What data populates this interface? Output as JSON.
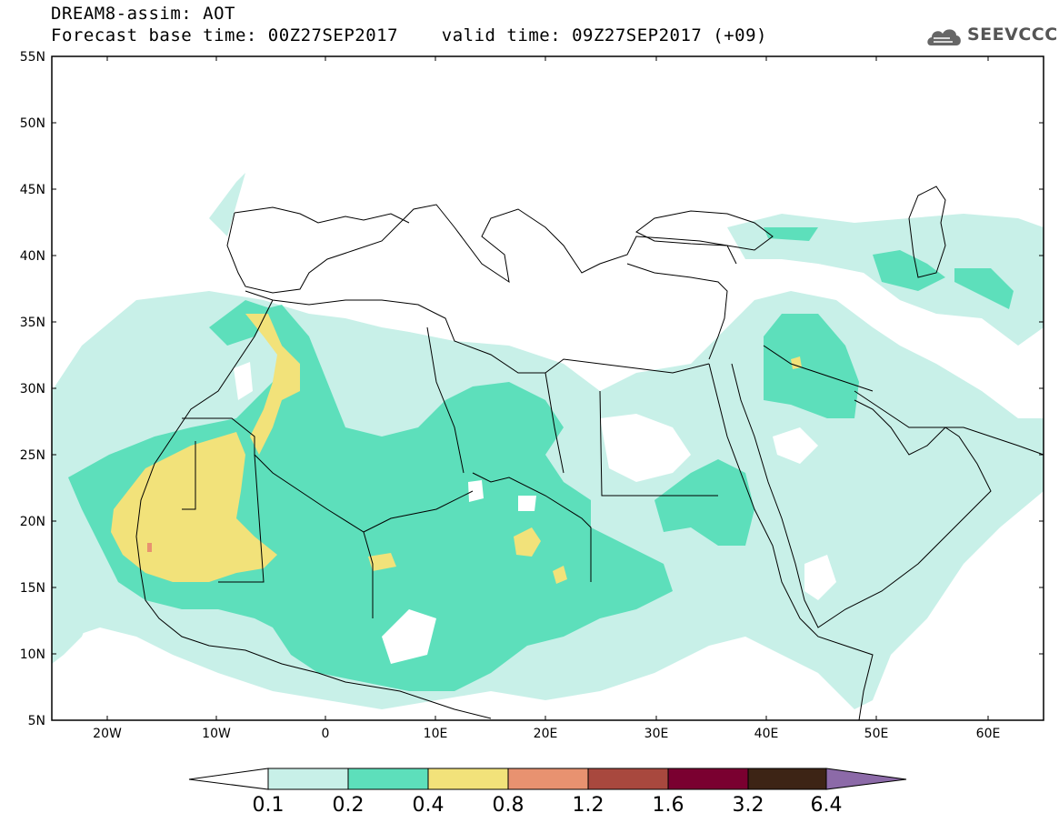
{
  "header": {
    "title_line1": "DREAM8-assim: AOT",
    "title_line2": "Forecast base time: 00Z27SEP2017    valid time: 09Z27SEP2017 (+09)",
    "logo_text": "SEEVCCC"
  },
  "map": {
    "lat_labels": [
      "55N",
      "50N",
      "45N",
      "40N",
      "35N",
      "30N",
      "25N",
      "20N",
      "15N",
      "10N",
      "5N"
    ],
    "lon_labels": [
      "20W",
      "10W",
      "0",
      "10E",
      "20E",
      "30E",
      "40E",
      "50E",
      "60E"
    ],
    "region": "North Africa and Middle East"
  },
  "colorbar": {
    "levels": [
      "0.1",
      "0.2",
      "0.4",
      "0.8",
      "1.2",
      "1.6",
      "3.2",
      "6.4"
    ],
    "colors": [
      "#c8f0e8",
      "#5ddfbb",
      "#f2e27a",
      "#e89270",
      "#a8483e",
      "#7a0030",
      "#3d2415",
      "#8c6aa8"
    ],
    "under_color": "#ffffff"
  }
}
